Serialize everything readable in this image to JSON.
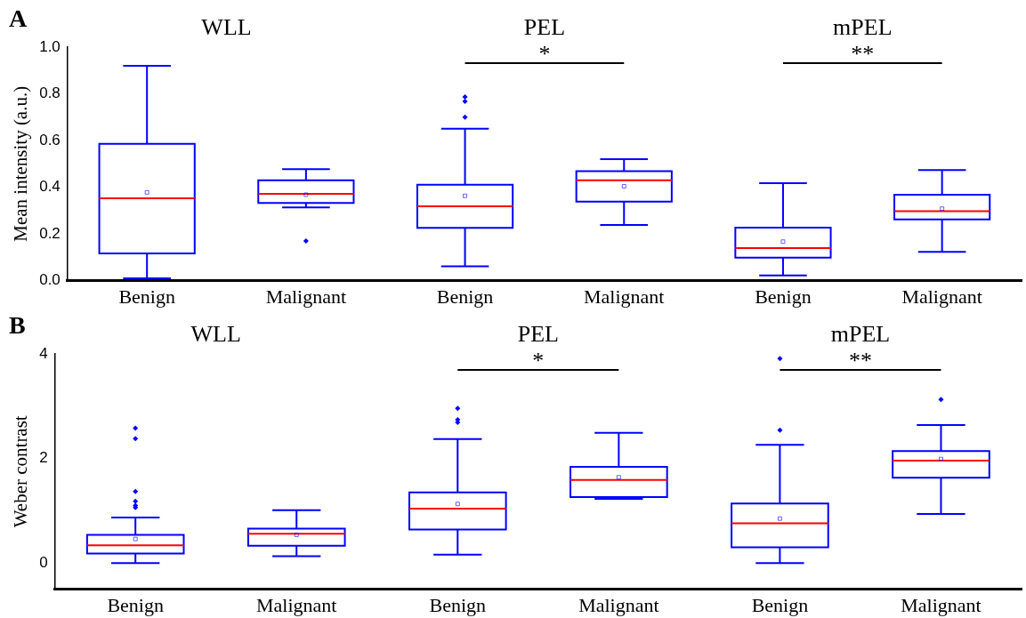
{
  "chart_data": [
    {
      "type": "box",
      "ylabel": "Mean intensity (a.u.)",
      "categories": [
        "Benign",
        "Malignant",
        "Benign",
        "Malignant",
        "Benign",
        "Malignant"
      ],
      "ylim": [
        0,
        1
      ],
      "yticks": [
        {
          "value": 0,
          "label": "0.0"
        },
        {
          "value": 0.2,
          "label": "0.2"
        },
        {
          "value": 0.4,
          "label": "0.4"
        },
        {
          "value": 0.6,
          "label": "0.6"
        },
        {
          "value": 0.8,
          "label": "0.8"
        },
        {
          "value": 1,
          "label": "1.0"
        }
      ],
      "grid": false,
      "legend": false,
      "annotations": [
        "A",
        "WLL",
        "PEL",
        "mPEL",
        "*",
        "**"
      ],
      "series": [
        {
          "color": "#0000ff",
          "boxes": [
            {
              "low": 0.01,
              "q1": 0.117,
              "median": 0.353,
              "q3": 0.586,
              "high": 0.92,
              "mean": 0.378
            },
            {
              "low": 0.314,
              "q1": 0.333,
              "median": 0.372,
              "q3": 0.43,
              "high": 0.477,
              "mean": 0.368,
              "outliers": [
                0.17
              ]
            },
            {
              "low": 0.061,
              "q1": 0.226,
              "median": 0.318,
              "q3": 0.411,
              "high": 0.651,
              "mean": 0.363,
              "outliers": [
                0.7,
                0.768,
                0.787
              ]
            },
            {
              "low": 0.238,
              "q1": 0.338,
              "median": 0.43,
              "q3": 0.469,
              "high": 0.52,
              "mean": 0.404
            },
            {
              "low": 0.022,
              "q1": 0.098,
              "median": 0.139,
              "q3": 0.227,
              "high": 0.417,
              "mean": 0.167
            },
            {
              "low": 0.123,
              "q1": 0.262,
              "median": 0.297,
              "q3": 0.368,
              "high": 0.474,
              "mean": 0.308
            }
          ]
        }
      ]
    },
    {
      "type": "box",
      "ylabel": "Weber contrast",
      "categories": [
        "Benign",
        "Malignant",
        "Benign",
        "Malignant",
        "Benign",
        "Malignant"
      ],
      "ylim": [
        -0.5,
        4
      ],
      "yticks": [
        0,
        2,
        4
      ],
      "grid": false,
      "legend": false,
      "annotations": [
        "B",
        "WLL",
        "PEL",
        "mPEL",
        "*",
        "**"
      ],
      "series": [
        {
          "color": "#0000ff",
          "boxes": [
            {
              "low": 0.0,
              "q1": 0.18,
              "median": 0.34,
              "q3": 0.54,
              "high": 0.87,
              "mean": 0.46,
              "outliers": [
                1.06,
                1.1,
                1.18,
                1.37,
                2.38,
                2.58
              ]
            },
            {
              "low": 0.13,
              "q1": 0.33,
              "median": 0.56,
              "q3": 0.66,
              "high": 1.01,
              "mean": 0.54
            },
            {
              "low": 0.16,
              "q1": 0.64,
              "median": 1.04,
              "q3": 1.35,
              "high": 2.37,
              "mean": 1.13,
              "outliers": [
                2.69,
                2.74,
                2.96
              ]
            },
            {
              "low": 1.23,
              "q1": 1.26,
              "median": 1.59,
              "q3": 1.84,
              "high": 2.49,
              "mean": 1.64
            },
            {
              "low": 0.0,
              "q1": 0.3,
              "median": 0.76,
              "q3": 1.14,
              "high": 2.26,
              "mean": 0.85,
              "outliers": [
                2.54,
                3.91
              ]
            },
            {
              "low": 0.94,
              "q1": 1.63,
              "median": 1.96,
              "q3": 2.14,
              "high": 2.64,
              "mean": 1.99,
              "outliers": [
                3.13
              ]
            }
          ]
        }
      ]
    }
  ]
}
